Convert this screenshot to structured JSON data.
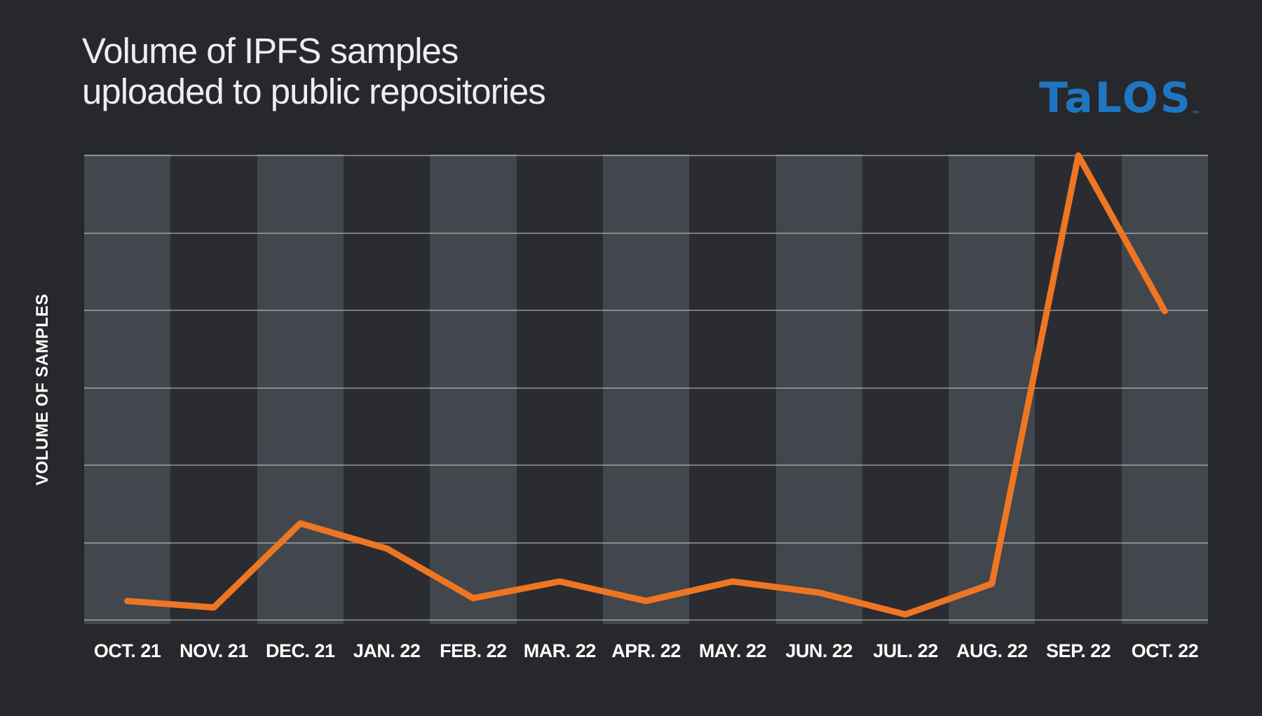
{
  "page": {
    "bg_color": "#26282B"
  },
  "header": {
    "title_line1": "Volume of IPFS samples",
    "title_line2": "uploaded to public repositories",
    "brand": {
      "name": "TaLOS",
      "trademark": "™",
      "color": "#1E76C2"
    }
  },
  "chart_data": {
    "type": "line",
    "title": "Volume of IPFS samples uploaded to public repositories",
    "xlabel": "",
    "ylabel": "VOLUME OF SAMPLES",
    "categories": [
      "OCT. 21",
      "NOV. 21",
      "DEC. 21",
      "JAN. 22",
      "FEB. 22",
      "MAR. 22",
      "APR. 22",
      "MAY. 22",
      "JUN. 22",
      "JUL. 22",
      "AUG. 22",
      "SEP. 22",
      "OCT. 22"
    ],
    "series": [
      {
        "name": "Volume of samples",
        "values": [
          4.1,
          2.7,
          20.8,
          15.4,
          4.7,
          8.3,
          4.1,
          8.3,
          5.9,
          1.2,
          7.8,
          100,
          66.5
        ]
      }
    ],
    "values_unit": "percent of peak (y-axis has no numeric tick labels in source)",
    "ylim": [
      0,
      100
    ],
    "y_gridline_rows": 6,
    "legend": "none",
    "grid_color": "rgba(255,255,255,0.38)",
    "line_color": "#EE7623",
    "line_width": 9,
    "plot_bands": {
      "first_column": "light",
      "light_color": "#42464D",
      "dark_color": "#2A2C31"
    }
  }
}
